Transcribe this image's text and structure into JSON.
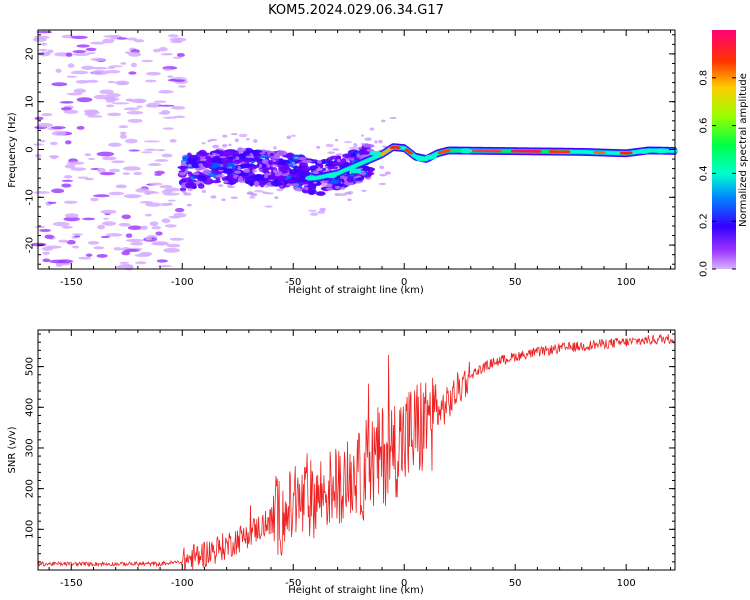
{
  "figure": {
    "title": "KOM5.2024.029.06.34.G17"
  },
  "chart_data": [
    {
      "type": "heatmap",
      "xlabel": "Height of straight line (km)",
      "ylabel": "Frequency (Hz)",
      "xlim": [
        -165,
        122
      ],
      "ylim": [
        -25,
        25
      ],
      "xticks": [
        -150,
        -100,
        -50,
        0,
        50,
        100
      ],
      "yticks": [
        -20,
        -10,
        0,
        10,
        20
      ],
      "grid": false,
      "colorbar": {
        "label": "Normalized spectral amplitude",
        "range": [
          0,
          1
        ],
        "ticks": [
          "0.0",
          "0.2",
          "0.4",
          "0.6",
          "0.8"
        ],
        "colormap": "gist_rainbow_r"
      },
      "ridge": {
        "description_points": [
          [
            -100,
            -5
          ],
          [
            -90,
            -4
          ],
          [
            -75,
            -3.5
          ],
          [
            -60,
            -4
          ],
          [
            -50,
            -4.5
          ],
          [
            -40,
            -6
          ],
          [
            -30,
            -5
          ],
          [
            -20,
            -3
          ],
          [
            -10,
            -1
          ],
          [
            -5,
            0.5
          ],
          [
            0,
            0.3
          ],
          [
            5,
            -1.5
          ],
          [
            10,
            -2
          ],
          [
            15,
            -0.8
          ],
          [
            20,
            -0.2
          ],
          [
            40,
            -0.3
          ],
          [
            60,
            -0.4
          ],
          [
            80,
            -0.5
          ],
          [
            100,
            -0.8
          ],
          [
            110,
            -0.2
          ],
          [
            122,
            -0.3
          ]
        ],
        "noise_region_x": [
          -165,
          -100
        ],
        "noise_freq_range": [
          -25,
          25
        ]
      }
    },
    {
      "type": "line",
      "xlabel": "Height of straight line (km)",
      "ylabel": "SNR (v/v)",
      "xlim": [
        -165,
        122
      ],
      "ylim": [
        0,
        590
      ],
      "xticks": [
        -150,
        -100,
        -50,
        0,
        50,
        100
      ],
      "yticks": [
        100,
        200,
        300,
        400,
        500
      ],
      "grid": false,
      "color": "#ee2222",
      "trend": [
        [
          -165,
          15
        ],
        [
          -110,
          15
        ],
        [
          -100,
          20
        ],
        [
          -90,
          40
        ],
        [
          -80,
          60
        ],
        [
          -70,
          90
        ],
        [
          -60,
          120
        ],
        [
          -50,
          150
        ],
        [
          -40,
          180
        ],
        [
          -30,
          210
        ],
        [
          -20,
          240
        ],
        [
          -10,
          280
        ],
        [
          0,
          320
        ],
        [
          10,
          360
        ],
        [
          20,
          410
        ],
        [
          25,
          450
        ],
        [
          30,
          480
        ],
        [
          40,
          510
        ],
        [
          50,
          525
        ],
        [
          60,
          535
        ],
        [
          70,
          545
        ],
        [
          80,
          550
        ],
        [
          90,
          556
        ],
        [
          100,
          560
        ],
        [
          110,
          565
        ],
        [
          122,
          570
        ]
      ]
    }
  ]
}
